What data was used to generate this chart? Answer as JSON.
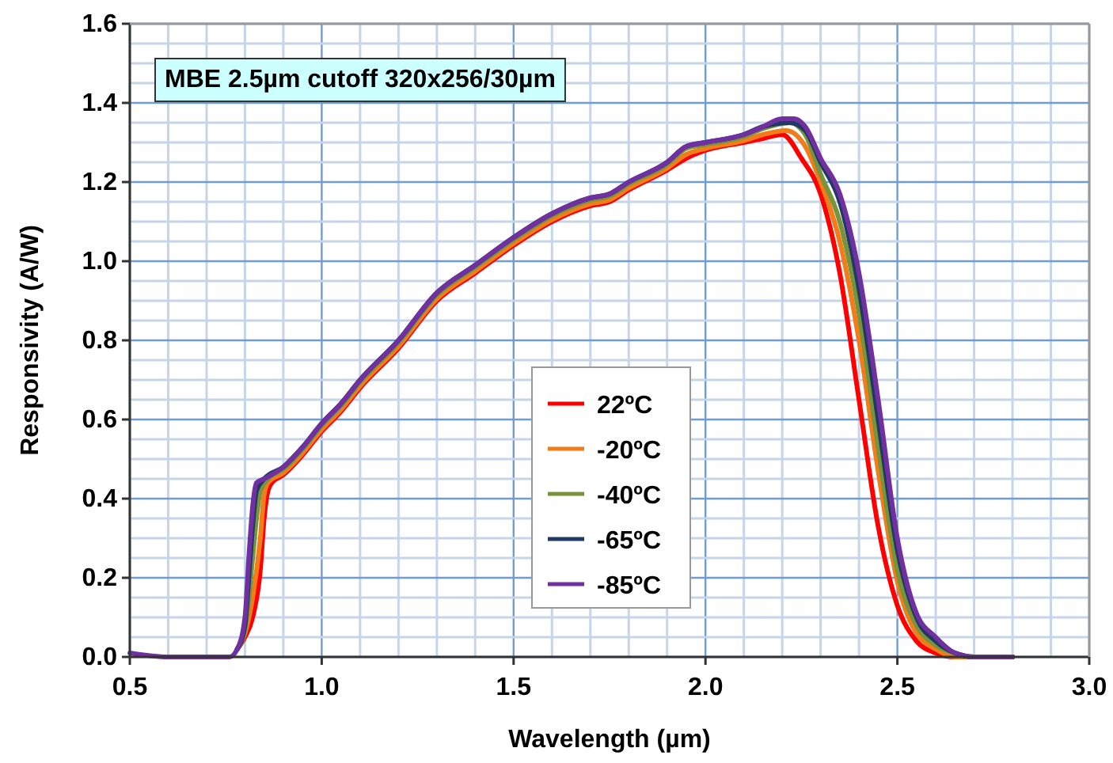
{
  "chart_data": {
    "type": "line",
    "xlabel": "Wavelength (µm)",
    "ylabel": "Responsivity (A/W)",
    "annotations": [
      "MBE 2.5µm cutoff 320x256/30µm"
    ],
    "xlim": [
      0.5,
      3.0
    ],
    "xticks": [
      {
        "value": 0.5,
        "label": "0.5"
      },
      {
        "value": 1.0,
        "label": "1.0"
      },
      {
        "value": 1.5,
        "label": "1.5"
      },
      {
        "value": 2.0,
        "label": "2.0"
      },
      {
        "value": 2.5,
        "label": "2.5"
      },
      {
        "value": 3.0,
        "label": "3.0"
      }
    ],
    "ylim": [
      0,
      1.6
    ],
    "yticks": [
      {
        "value": 0,
        "label": "0.0"
      },
      {
        "value": 0.2,
        "label": "0.2"
      },
      {
        "value": 0.4,
        "label": "0.4"
      },
      {
        "value": 0.6,
        "label": "0.6"
      },
      {
        "value": 0.8,
        "label": "0.8"
      },
      {
        "value": 1.0,
        "label": "1.0"
      },
      {
        "value": 1.2,
        "label": "1.2"
      },
      {
        "value": 1.4,
        "label": "1.4"
      },
      {
        "value": 1.6,
        "label": "1.6"
      }
    ],
    "grid": true,
    "legend": "bottom",
    "marker": "none",
    "line_style": "solid",
    "series": [
      {
        "name": "22ºC",
        "color": "#ff0000",
        "x": [
          0.78,
          0.8,
          0.82,
          0.84,
          0.85,
          0.86,
          0.87,
          0.9,
          0.95,
          1.0,
          1.05,
          1.1,
          1.2,
          1.3,
          1.4,
          1.5,
          1.6,
          1.7,
          1.75,
          1.8,
          1.9,
          1.95,
          2.0,
          2.1,
          2.15,
          2.2,
          2.25,
          2.3,
          2.35,
          2.4,
          2.45,
          2.5,
          2.55,
          2.6,
          2.65,
          2.7,
          2.8
        ],
        "values": [
          0.02,
          0.05,
          0.1,
          0.22,
          0.35,
          0.42,
          0.44,
          0.46,
          0.51,
          0.57,
          0.62,
          0.68,
          0.78,
          0.9,
          0.97,
          1.04,
          1.1,
          1.14,
          1.15,
          1.18,
          1.23,
          1.26,
          1.28,
          1.3,
          1.31,
          1.32,
          1.26,
          1.17,
          0.97,
          0.65,
          0.33,
          0.13,
          0.04,
          0.01,
          0,
          0,
          0
        ]
      },
      {
        "name": "-20ºC",
        "color": "#f07d1a",
        "x": [
          0.78,
          0.8,
          0.82,
          0.84,
          0.85,
          0.86,
          0.9,
          0.95,
          1.0,
          1.05,
          1.1,
          1.2,
          1.3,
          1.4,
          1.5,
          1.6,
          1.7,
          1.75,
          1.8,
          1.9,
          1.95,
          2.0,
          2.1,
          2.15,
          2.21,
          2.26,
          2.3,
          2.35,
          2.4,
          2.45,
          2.5,
          2.55,
          2.6,
          2.65,
          2.7,
          2.8
        ],
        "values": [
          0.02,
          0.06,
          0.15,
          0.3,
          0.41,
          0.44,
          0.465,
          0.515,
          0.575,
          0.625,
          0.685,
          0.785,
          0.905,
          0.975,
          1.045,
          1.105,
          1.145,
          1.155,
          1.185,
          1.235,
          1.27,
          1.285,
          1.305,
          1.32,
          1.33,
          1.29,
          1.2,
          1.05,
          0.8,
          0.47,
          0.19,
          0.06,
          0.02,
          0,
          0,
          0
        ]
      },
      {
        "name": "-40ºC",
        "color": "#77933c",
        "x": [
          0.78,
          0.8,
          0.82,
          0.83,
          0.84,
          0.86,
          0.9,
          0.95,
          1.0,
          1.05,
          1.1,
          1.2,
          1.3,
          1.4,
          1.5,
          1.6,
          1.7,
          1.75,
          1.8,
          1.9,
          1.95,
          2.0,
          2.1,
          2.15,
          2.22,
          2.26,
          2.3,
          2.35,
          2.4,
          2.45,
          2.5,
          2.55,
          2.6,
          2.65,
          2.7,
          2.8
        ],
        "values": [
          0.02,
          0.07,
          0.25,
          0.35,
          0.42,
          0.45,
          0.475,
          0.525,
          0.585,
          0.635,
          0.695,
          0.795,
          0.915,
          0.985,
          1.055,
          1.115,
          1.155,
          1.165,
          1.195,
          1.245,
          1.285,
          1.295,
          1.315,
          1.335,
          1.35,
          1.32,
          1.22,
          1.1,
          0.87,
          0.53,
          0.22,
          0.08,
          0.03,
          0.01,
          0,
          0
        ]
      },
      {
        "name": "-65ºC",
        "color": "#1f3864",
        "x": [
          0.78,
          0.8,
          0.81,
          0.82,
          0.83,
          0.85,
          0.9,
          0.95,
          1.0,
          1.05,
          1.1,
          1.2,
          1.3,
          1.4,
          1.5,
          1.6,
          1.7,
          1.75,
          1.8,
          1.9,
          1.95,
          2.0,
          2.1,
          2.15,
          2.22,
          2.26,
          2.3,
          2.35,
          2.4,
          2.45,
          2.5,
          2.55,
          2.6,
          2.65,
          2.7,
          2.8
        ],
        "values": [
          0.02,
          0.08,
          0.2,
          0.33,
          0.42,
          0.45,
          0.48,
          0.53,
          0.59,
          0.64,
          0.7,
          0.8,
          0.92,
          0.99,
          1.06,
          1.12,
          1.16,
          1.17,
          1.2,
          1.25,
          1.29,
          1.3,
          1.32,
          1.34,
          1.35,
          1.33,
          1.25,
          1.15,
          0.93,
          0.6,
          0.27,
          0.1,
          0.04,
          0.01,
          0,
          0
        ]
      },
      {
        "name": "-85ºC",
        "color": "#7030a0",
        "x": [
          0.5,
          0.6,
          0.7,
          0.76,
          0.78,
          0.8,
          0.81,
          0.82,
          0.83,
          0.85,
          0.9,
          0.95,
          1.0,
          1.05,
          1.1,
          1.2,
          1.3,
          1.4,
          1.5,
          1.6,
          1.7,
          1.75,
          1.8,
          1.9,
          1.95,
          2.0,
          2.1,
          2.15,
          2.2,
          2.23,
          2.26,
          2.3,
          2.35,
          2.4,
          2.45,
          2.5,
          2.55,
          2.6,
          2.65,
          2.7,
          2.8
        ],
        "values": [
          0.01,
          0,
          0,
          0,
          0.02,
          0.1,
          0.25,
          0.38,
          0.44,
          0.45,
          0.48,
          0.53,
          0.59,
          0.64,
          0.7,
          0.8,
          0.92,
          0.99,
          1.06,
          1.12,
          1.16,
          1.17,
          1.2,
          1.25,
          1.29,
          1.3,
          1.32,
          1.34,
          1.36,
          1.36,
          1.34,
          1.26,
          1.17,
          0.97,
          0.65,
          0.3,
          0.11,
          0.05,
          0.01,
          0,
          0
        ]
      }
    ]
  }
}
